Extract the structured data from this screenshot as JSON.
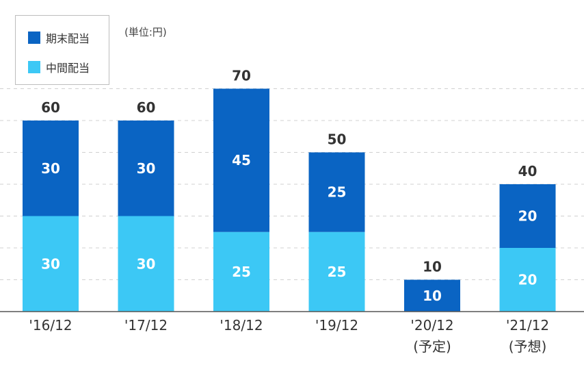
{
  "chart_data": {
    "type": "bar",
    "stacked": true,
    "unit": "(単位:円)",
    "categories": [
      "'16/12",
      "'17/12",
      "'18/12",
      "'19/12",
      "'20/12",
      "'21/12"
    ],
    "category_notes": [
      "",
      "",
      "",
      "",
      "(予定)",
      "(予想)"
    ],
    "series": [
      {
        "name": "中間配当",
        "color": "#3cc8f5",
        "values": [
          30,
          30,
          25,
          25,
          0,
          20
        ]
      },
      {
        "name": "期末配当",
        "color": "#0a64c3",
        "values": [
          30,
          30,
          45,
          25,
          10,
          20
        ]
      }
    ],
    "totals": [
      60,
      60,
      70,
      50,
      10,
      40
    ],
    "ylim": [
      0,
      70
    ],
    "grid": true,
    "legend_position": "top-left"
  }
}
